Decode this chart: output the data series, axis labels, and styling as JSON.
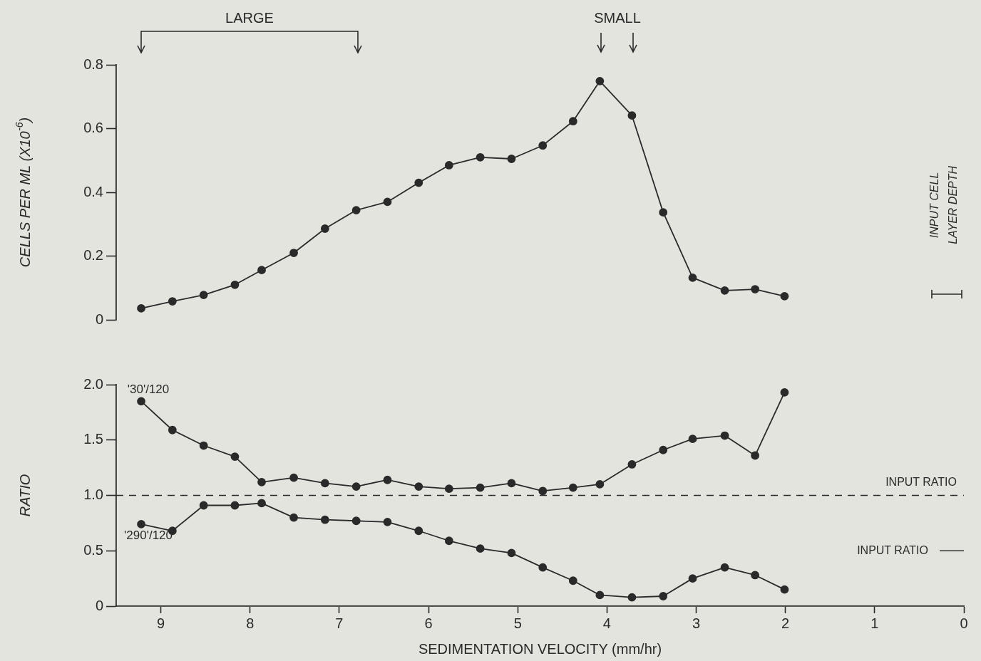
{
  "chart_data": [
    {
      "type": "line",
      "ylabel": "CELLS PER ML (X10$^{-6}$)",
      "x": [
        9.22,
        8.87,
        8.52,
        8.17,
        7.87,
        7.51,
        7.16,
        6.81,
        6.46,
        6.11,
        5.77,
        5.42,
        5.07,
        4.72,
        4.38,
        4.08,
        3.72,
        3.37,
        3.04,
        2.68,
        2.34,
        2.01
      ],
      "series": [
        {
          "color": "#2a2a2a",
          "values": [
            0.036,
            0.058,
            0.078,
            0.11,
            0.156,
            0.21,
            0.286,
            0.344,
            0.37,
            0.43,
            0.485,
            0.51,
            0.505,
            0.547,
            0.623,
            0.749,
            0.641,
            0.337,
            0.132,
            0.092,
            0.096,
            0.074
          ]
        }
      ],
      "xlim": [
        9.5,
        0
      ],
      "ylim": [
        0,
        0.8
      ],
      "yticks": [
        0,
        0.2,
        0.4,
        0.6,
        0.8
      ],
      "tick_labels": "y",
      "grid": false,
      "legend": false,
      "marker": "circle",
      "line_style": "solid",
      "annotations": [
        "LARGE",
        "SMALL",
        "INPUT CELL LAYER DEPTH"
      ]
    },
    {
      "type": "line",
      "xlabel": "SEDIMENTATION VELOCITY (mm/hr)",
      "ylabel": "RATIO",
      "x": [
        9.22,
        8.87,
        8.52,
        8.17,
        7.87,
        7.51,
        7.16,
        6.81,
        6.46,
        6.11,
        5.77,
        5.42,
        5.07,
        4.72,
        4.38,
        4.08,
        3.72,
        3.37,
        3.04,
        2.68,
        2.34,
        2.01
      ],
      "series": [
        {
          "name": "'30'/120",
          "color": "#2a2a2a",
          "values": [
            1.85,
            1.59,
            1.45,
            1.35,
            1.12,
            1.16,
            1.11,
            1.08,
            1.14,
            1.08,
            1.06,
            1.07,
            1.11,
            1.04,
            1.07,
            1.1,
            1.28,
            1.41,
            1.51,
            1.54,
            1.36,
            1.93
          ]
        },
        {
          "name": "'290'/120",
          "color": "#2a2a2a",
          "values": [
            0.74,
            0.68,
            0.91,
            0.91,
            0.93,
            0.8,
            0.78,
            0.77,
            0.76,
            0.68,
            0.59,
            0.52,
            0.48,
            0.35,
            0.23,
            0.1,
            0.08,
            0.09,
            0.25,
            0.35,
            0.28,
            0.15
          ]
        }
      ],
      "xlim": [
        9.5,
        0
      ],
      "ylim": [
        0,
        2.0
      ],
      "xticks": [
        0,
        1,
        2,
        3,
        4,
        5,
        6,
        7,
        8,
        9
      ],
      "yticks": [
        0,
        0.5,
        {
          "value": 1.0,
          "label": "1.0"
        },
        1.5,
        {
          "value": 2.0,
          "label": "2.0"
        }
      ],
      "grid": false,
      "legend": false,
      "marker": "circle",
      "line_style": "solid",
      "ref_lines": [
        {
          "axis": "y",
          "value": 1.0,
          "label": "INPUT RATIO",
          "line_style": "dashed"
        }
      ],
      "annotations": [
        "INPUT RATIO"
      ]
    }
  ]
}
